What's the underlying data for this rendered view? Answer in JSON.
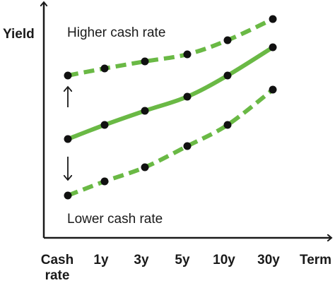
{
  "chart_data": {
    "type": "line",
    "ylabel": "Yield",
    "xlabel": "Term",
    "categories": [
      "Cash rate",
      "1y",
      "3y",
      "5y",
      "10y",
      "30y"
    ],
    "tick_labels": [
      {
        "line1": "Cash",
        "line2": "rate"
      },
      {
        "line1": "1y",
        "line2": ""
      },
      {
        "line1": "3y",
        "line2": ""
      },
      {
        "line1": "5y",
        "line2": ""
      },
      {
        "line1": "10y",
        "line2": ""
      },
      {
        "line1": "30y",
        "line2": ""
      }
    ],
    "annotations": {
      "upper": "Higher cash rate",
      "lower": "Lower cash rate"
    },
    "series": [
      {
        "style": "dashed",
        "values": [
          2.3,
          2.4,
          2.5,
          2.6,
          2.8,
          3.1
        ]
      },
      {
        "style": "solid",
        "values": [
          1.4,
          1.6,
          1.8,
          2.0,
          2.3,
          2.7
        ]
      },
      {
        "style": "dashed",
        "values": [
          0.6,
          0.8,
          1.0,
          1.3,
          1.6,
          2.1
        ]
      }
    ],
    "color": "#6ab945",
    "marker_color": "#111111",
    "axis_color": "#1a1a1a",
    "grid": false,
    "legend": "none"
  }
}
